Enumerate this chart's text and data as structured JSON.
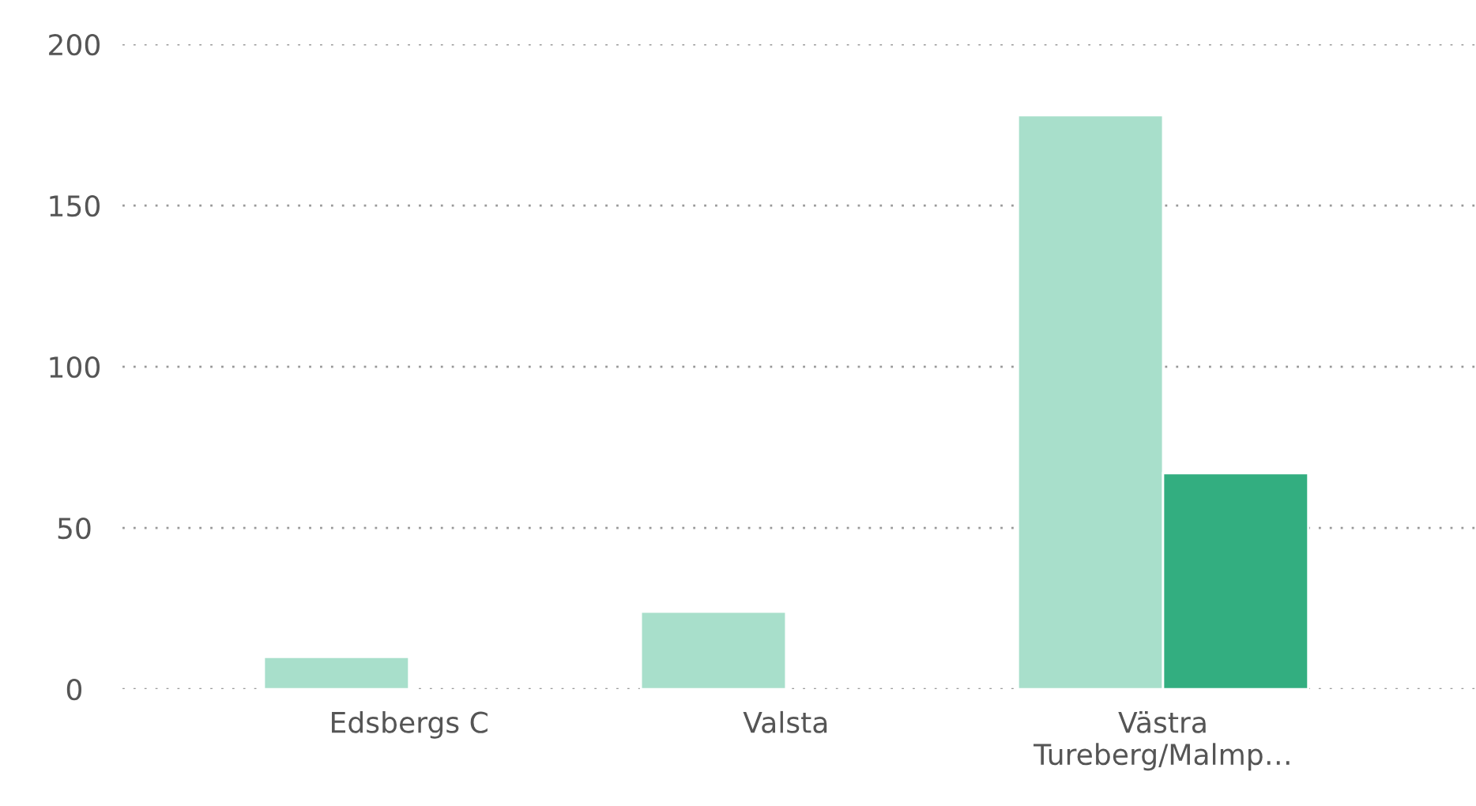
{
  "chart_data": {
    "type": "bar",
    "categories": [
      "Edsbergs C",
      "Valsta",
      "Västra Tureberg/Malmp…"
    ],
    "series": [
      {
        "color": "#a8dfcb",
        "values": [
          10,
          24,
          178
        ]
      },
      {
        "color": "#33ae80",
        "values": [
          null,
          null,
          67
        ]
      }
    ],
    "ylim": [
      0,
      200
    ],
    "yticks": [
      0,
      50,
      100,
      150,
      200
    ],
    "grid": "y",
    "legend": false
  }
}
